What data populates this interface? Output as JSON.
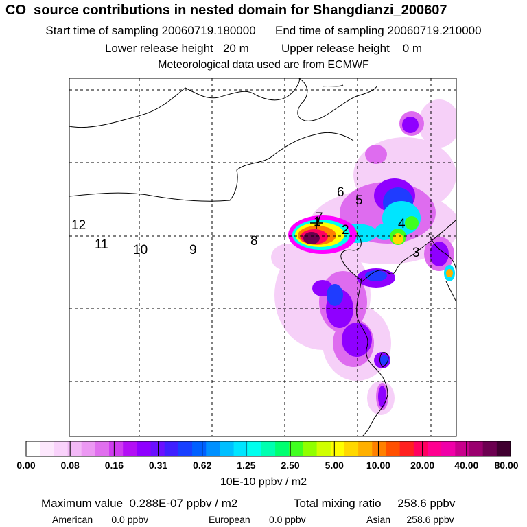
{
  "header": {
    "title": "CO  source contributions in nested domain for Shangdianzi_200607",
    "start_label": "Start time of sampling",
    "start_value": "20060719.180000",
    "end_label": "End time of sampling",
    "end_value": "20060719.210000",
    "lower_label": "Lower release height",
    "lower_value": "20 m",
    "upper_label": "Upper release height",
    "upper_value": "0 m",
    "met_line": "Meteorological data used are from ECMWF"
  },
  "chart_data": {
    "type": "heatmap",
    "map_labels": [
      "12",
      "11",
      "10",
      "9",
      "8",
      "7",
      "6",
      "5",
      "4",
      "3",
      "2",
      "1"
    ],
    "colorbar": {
      "ticks": [
        "0.00",
        "0.08",
        "0.16",
        "0.31",
        "0.62",
        "1.25",
        "2.50",
        "5.00",
        "10.00",
        "20.00",
        "40.00",
        "80.00"
      ],
      "units": "10E-10 ppbv / m2",
      "colors": [
        "#ffffff",
        "#fde8fd",
        "#f9d2fb",
        "#f3b9f7",
        "#ec98f3",
        "#e06fee",
        "#cf3cf0",
        "#b30ff5",
        "#8f00ff",
        "#6a10ff",
        "#3f20ff",
        "#1840ff",
        "#0060ff",
        "#0090ff",
        "#00bfff",
        "#00e5ff",
        "#00ffee",
        "#00ffb0",
        "#00ff70",
        "#40ff20",
        "#90ff00",
        "#d0ff00",
        "#ffff00",
        "#ffd800",
        "#ffb000",
        "#ff8000",
        "#ff5000",
        "#ff2020",
        "#ff0060",
        "#ff0090",
        "#f000a8",
        "#c8008c",
        "#9a006e",
        "#6c0050",
        "#400030"
      ]
    },
    "grid": true,
    "lon_lines": 5,
    "lat_lines": 5
  },
  "stats": {
    "max_label": "Maximum value",
    "max_value": "0.288E-07 ppbv / m2",
    "total_label": "Total mixing ratio",
    "total_value": "258.6 ppbv",
    "american_label": "American",
    "american_value": "0.0 ppbv",
    "european_label": "European",
    "european_value": "0.0 ppbv",
    "asian_label": "Asian",
    "asian_value": "258.6 ppbv"
  }
}
